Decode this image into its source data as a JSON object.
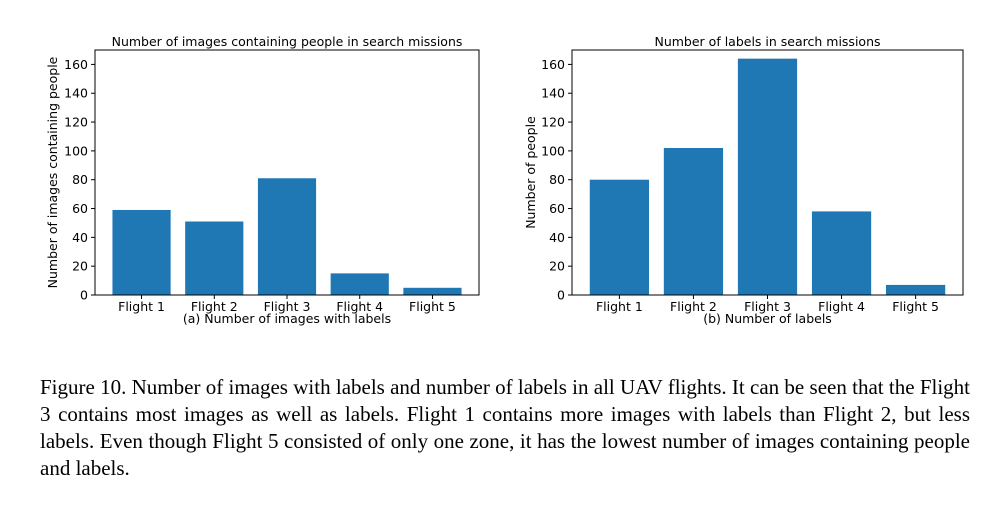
{
  "chart_data": [
    {
      "type": "bar",
      "title": "Number of images containing people in search missions",
      "xlabel": "(a) Number of images with labels",
      "ylabel": "Number of images containing people",
      "categories": [
        "Flight 1",
        "Flight 2",
        "Flight 3",
        "Flight 4",
        "Flight 5"
      ],
      "values": [
        59,
        51,
        81,
        15,
        5
      ],
      "ylim": [
        0,
        170
      ],
      "yticks": [
        0,
        20,
        40,
        60,
        80,
        100,
        120,
        140,
        160
      ],
      "bar_color": "#1f77b4",
      "grid": false
    },
    {
      "type": "bar",
      "title": "Number of labels in search missions",
      "xlabel": "(b) Number of labels",
      "ylabel": "Number of people",
      "categories": [
        "Flight 1",
        "Flight 2",
        "Flight 3",
        "Flight 4",
        "Flight 5"
      ],
      "values": [
        80,
        102,
        164,
        58,
        7
      ],
      "ylim": [
        0,
        170
      ],
      "yticks": [
        0,
        20,
        40,
        60,
        80,
        100,
        120,
        140,
        160
      ],
      "bar_color": "#1f77b4",
      "grid": false
    }
  ],
  "caption": "Figure 10. Number of images with labels and number of labels in all UAV flights. It can be seen that the Flight 3 contains most images as well as labels. Flight 1 contains more images with labels than Flight 2, but less labels. Even though Flight 5 consisted of only one zone, it has the lowest number of images containing people and labels."
}
